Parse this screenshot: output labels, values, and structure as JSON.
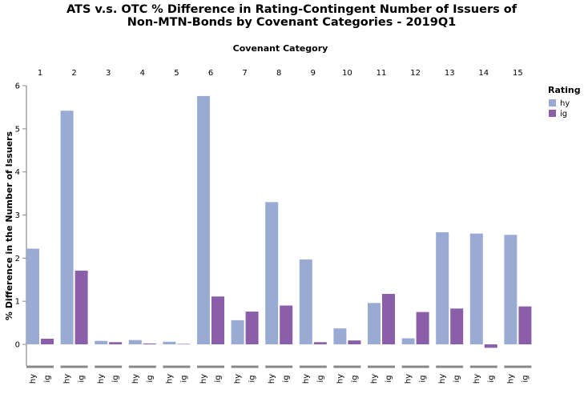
{
  "chart_data": {
    "type": "bar",
    "title_lines": [
      "ATS v.s. OTC % Difference in Rating-Contingent Number of Issuers of",
      "Non-MTN-Bonds by Covenant Categories - 2019Q1"
    ],
    "column_axis_title": "Covenant Category",
    "ylabel": "% Difference in the Number of Issuers",
    "ylim": [
      -0.5,
      6
    ],
    "yticks": [
      0,
      1,
      2,
      3,
      4,
      5,
      6
    ],
    "categories": [
      "1",
      "2",
      "3",
      "4",
      "5",
      "6",
      "7",
      "8",
      "9",
      "10",
      "11",
      "12",
      "13",
      "14",
      "15"
    ],
    "subcategories": [
      "hy",
      "ig"
    ],
    "legend": {
      "title": "Rating",
      "position": "top-right"
    },
    "series": [
      {
        "name": "hy",
        "color": "#9aabd3",
        "values": [
          2.22,
          5.42,
          0.08,
          0.1,
          0.06,
          5.76,
          0.56,
          3.3,
          1.97,
          0.37,
          0.96,
          0.14,
          2.6,
          2.57,
          2.54
        ]
      },
      {
        "name": "ig",
        "color": "#8b5eaa",
        "values": [
          0.13,
          1.71,
          0.05,
          0.02,
          0.01,
          1.11,
          0.76,
          0.9,
          0.05,
          0.09,
          1.17,
          0.75,
          0.83,
          -0.08,
          0.88
        ]
      }
    ]
  }
}
